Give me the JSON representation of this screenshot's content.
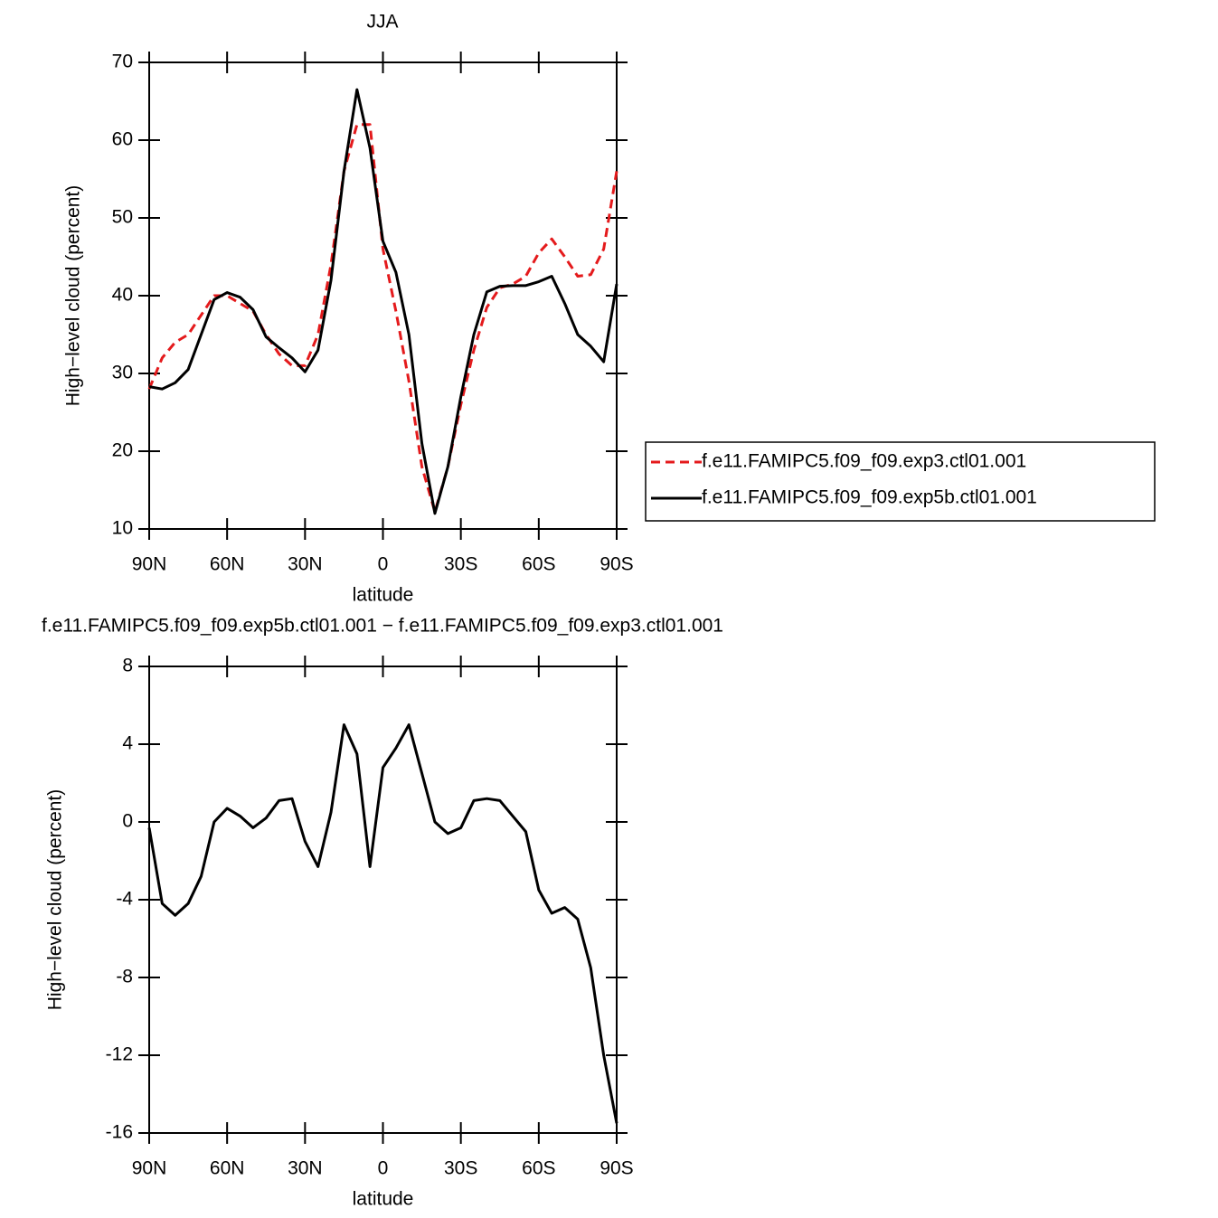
{
  "chart_data": [
    {
      "type": "line",
      "title": "JJA",
      "xlabel": "latitude",
      "ylabel": "High−level cloud (percent)",
      "legend": "right",
      "x": [
        90,
        85,
        80,
        75,
        70,
        65,
        60,
        55,
        50,
        45,
        40,
        35,
        30,
        25,
        20,
        15,
        10,
        5,
        0,
        -5,
        -10,
        -15,
        -20,
        -25,
        -30,
        -35,
        -40,
        -45,
        -50,
        -55,
        -60,
        -65,
        -70,
        -75,
        -80,
        -85,
        -90
      ],
      "xlim": [
        90,
        -90
      ],
      "xticks": [
        {
          "value": 90,
          "label": "90N"
        },
        {
          "value": 60,
          "label": "60N"
        },
        {
          "value": 30,
          "label": "30N"
        },
        0,
        {
          "value": -30,
          "label": "30S"
        },
        {
          "value": -60,
          "label": "60S"
        },
        {
          "value": -90,
          "label": "90S"
        }
      ],
      "ylim": [
        10,
        70
      ],
      "yticks": [
        10,
        20,
        30,
        40,
        50,
        60,
        70
      ],
      "series": [
        {
          "name": "f.e11.FAMIPC5.f09_f09.exp3.ctl01.001",
          "color": "#e41a1c",
          "line_style": "dashed",
          "values": [
            28,
            32,
            34,
            35,
            37.5,
            40,
            40,
            39,
            38,
            35,
            32.5,
            31,
            31,
            35,
            44,
            56,
            62,
            62,
            46,
            38,
            29,
            18,
            12.2,
            18,
            26,
            33,
            38.5,
            41,
            41.5,
            42.5,
            45.5,
            47.3,
            45,
            42.5,
            42.7,
            46,
            56
          ]
        },
        {
          "name": "f.e11.FAMIPC5.f09_f09.exp5b.ctl01.001",
          "color": "#000000",
          "line_style": "solid",
          "values": [
            28.3,
            28,
            28.8,
            30.5,
            35,
            39.5,
            40.4,
            39.8,
            38.2,
            34.7,
            33.3,
            32,
            30.2,
            33,
            42,
            56,
            66.5,
            59,
            47,
            43,
            35,
            21,
            12,
            18,
            27,
            35,
            40.5,
            41.2,
            41.3,
            41.3,
            41.8,
            42.5,
            39,
            35,
            33.5,
            31.5,
            41.5
          ]
        }
      ]
    },
    {
      "type": "line",
      "title": "f.e11.FAMIPC5.f09_f09.exp5b.ctl01.001 − f.e11.FAMIPC5.f09_f09.exp3.ctl01.001",
      "xlabel": "latitude",
      "ylabel": "High−level cloud (percent)",
      "x": [
        90,
        85,
        80,
        75,
        70,
        65,
        60,
        55,
        50,
        45,
        40,
        35,
        30,
        25,
        20,
        15,
        10,
        5,
        0,
        -5,
        -10,
        -15,
        -20,
        -25,
        -30,
        -35,
        -40,
        -45,
        -50,
        -55,
        -60,
        -65,
        -70,
        -75,
        -80,
        -85,
        -90
      ],
      "xlim": [
        90,
        -90
      ],
      "xticks": [
        {
          "value": 90,
          "label": "90N"
        },
        {
          "value": 60,
          "label": "60N"
        },
        {
          "value": 30,
          "label": "30N"
        },
        0,
        {
          "value": -30,
          "label": "30S"
        },
        {
          "value": -60,
          "label": "60S"
        },
        {
          "value": -90,
          "label": "90S"
        }
      ],
      "ylim": [
        -16,
        8
      ],
      "yticks": [
        -16,
        -12,
        -8,
        -4,
        0,
        4,
        8
      ],
      "series": [
        {
          "name": null,
          "color": "#000000",
          "line_style": "solid",
          "values": [
            -0.3,
            -4.2,
            -4.8,
            -4.2,
            -2.8,
            0,
            0.7,
            0.3,
            -0.3,
            0.2,
            1.1,
            1.2,
            -1,
            -2.3,
            0.5,
            5,
            3.5,
            -2.3,
            2.8,
            3.8,
            5,
            2.5,
            0,
            -0.6,
            -0.3,
            1.1,
            1.2,
            1.1,
            0.3,
            -0.5,
            -3.5,
            -4.7,
            -4.4,
            -5,
            -7.5,
            -12,
            -15.5
          ]
        }
      ]
    }
  ]
}
